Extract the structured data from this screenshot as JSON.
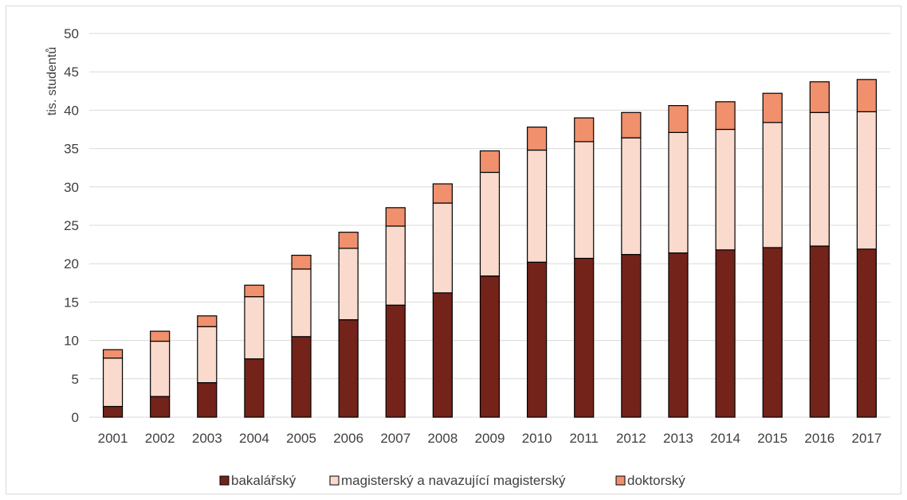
{
  "chart_data": {
    "type": "bar",
    "stacked": true,
    "title": "",
    "xlabel": "",
    "ylabel": "tis. studentů",
    "ylim": [
      0,
      50
    ],
    "yticks": [
      0,
      5,
      10,
      15,
      20,
      25,
      30,
      35,
      40,
      45,
      50
    ],
    "grid": true,
    "legend_position": "bottom",
    "categories": [
      "2001",
      "2002",
      "2003",
      "2004",
      "2005",
      "2006",
      "2007",
      "2008",
      "2009",
      "2010",
      "2011",
      "2012",
      "2013",
      "2014",
      "2015",
      "2016",
      "2017"
    ],
    "series": [
      {
        "name": "bakalářský",
        "color": "#74231a",
        "values": [
          1.4,
          2.7,
          4.5,
          7.6,
          10.5,
          12.7,
          14.6,
          16.2,
          18.4,
          20.2,
          20.7,
          21.2,
          21.4,
          21.8,
          22.1,
          22.3,
          21.9
        ]
      },
      {
        "name": "magisterský a navazující magisterský",
        "color": "#f9dacd",
        "values": [
          6.3,
          7.2,
          7.3,
          8.1,
          8.8,
          9.3,
          10.3,
          11.7,
          13.5,
          14.6,
          15.2,
          15.2,
          15.7,
          15.7,
          16.3,
          17.4,
          17.9
        ]
      },
      {
        "name": "doktorský",
        "color": "#f0906c",
        "values": [
          1.1,
          1.3,
          1.4,
          1.5,
          1.8,
          2.1,
          2.4,
          2.5,
          2.8,
          3.0,
          3.1,
          3.3,
          3.5,
          3.6,
          3.8,
          4.0,
          4.2
        ]
      }
    ]
  }
}
